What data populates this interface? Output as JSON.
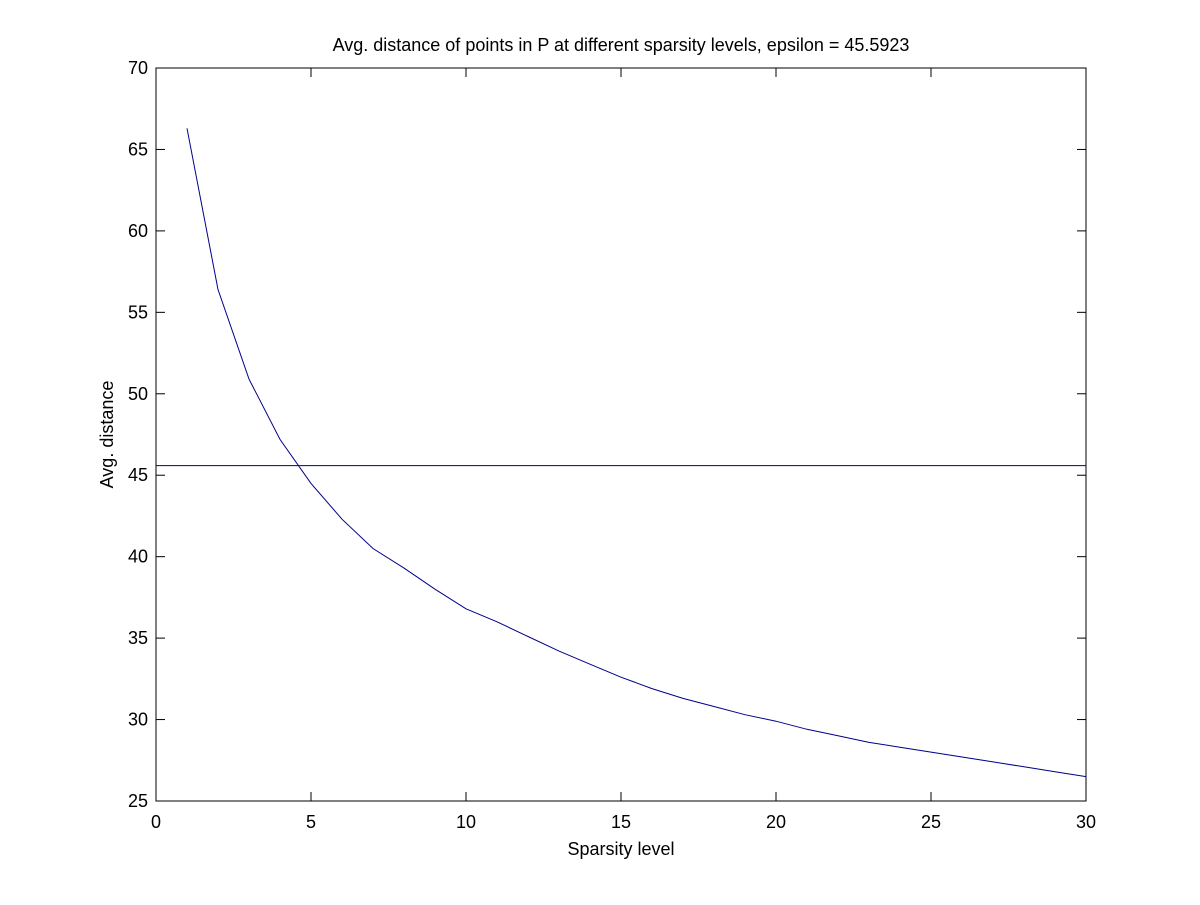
{
  "chart_data": {
    "type": "line",
    "title": "Avg. distance of points in P at different sparsity levels, epsilon = 45.5923",
    "xlabel": "Sparsity level",
    "ylabel": "Avg. distance",
    "xlim": [
      0,
      30
    ],
    "ylim": [
      25,
      70
    ],
    "xticks": [
      0,
      5,
      10,
      15,
      20,
      25,
      30
    ],
    "yticks": [
      25,
      30,
      35,
      40,
      45,
      50,
      55,
      60,
      65,
      70
    ],
    "grid": false,
    "line_color": "#00008b",
    "series": [
      {
        "x": [
          1,
          2,
          3,
          4,
          5,
          6,
          7,
          8,
          9,
          10,
          11,
          12,
          13,
          14,
          15,
          16,
          17,
          18,
          19,
          20,
          21,
          22,
          23,
          24,
          25,
          26,
          27,
          28,
          29,
          30
        ],
        "values": [
          66.3,
          56.4,
          50.9,
          47.2,
          44.5,
          42.3,
          40.5,
          39.3,
          38.0,
          36.8,
          36.0,
          35.1,
          34.2,
          33.4,
          32.6,
          31.9,
          31.3,
          30.8,
          30.3,
          29.9,
          29.4,
          29.0,
          28.6,
          28.3,
          28.0,
          27.7,
          27.4,
          27.1,
          26.8,
          26.5
        ]
      },
      {
        "x": [
          0,
          30
        ],
        "values": [
          45.5923,
          45.5923
        ]
      }
    ]
  }
}
